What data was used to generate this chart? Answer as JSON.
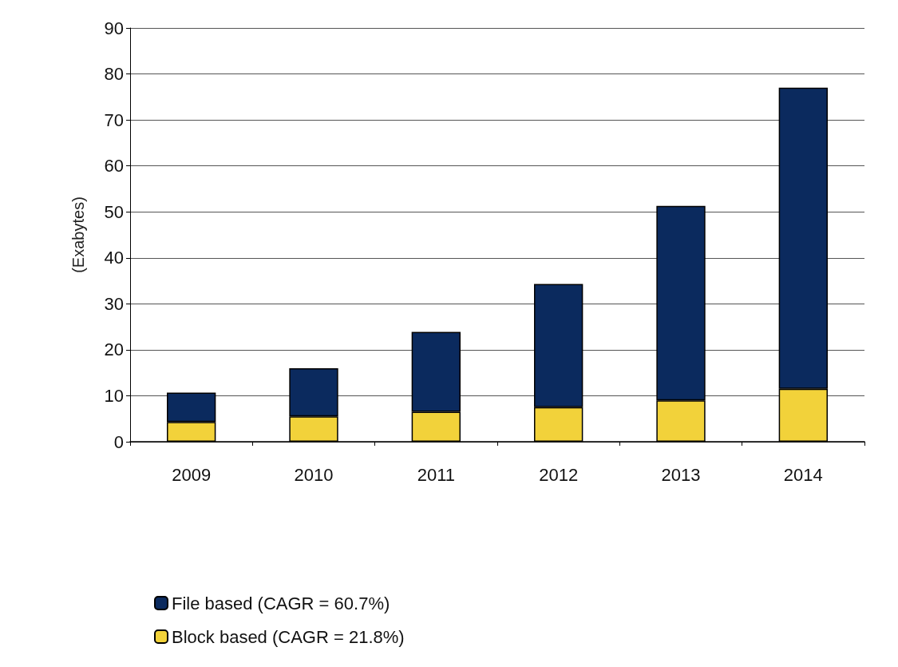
{
  "chart_data": {
    "type": "bar",
    "stacked": true,
    "ylabel": "(Exabytes)",
    "categories": [
      "2009",
      "2010",
      "2011",
      "2012",
      "2013",
      "2014"
    ],
    "series": [
      {
        "name": "Block based (CAGR = 21.8%)",
        "color": "#f2d23a",
        "values": [
          4.3,
          5.5,
          6.5,
          7.5,
          9,
          11.5
        ]
      },
      {
        "name": "File based (CAGR = 60.7%)",
        "color": "#0b2a5e",
        "values": [
          6.4,
          10.5,
          17.4,
          26.8,
          42.3,
          65.5
        ]
      }
    ],
    "ylim": [
      0,
      90
    ],
    "yticks": [
      0,
      10,
      20,
      30,
      40,
      50,
      60,
      70,
      80,
      90
    ],
    "grid": "y",
    "legend": "bottom left"
  }
}
